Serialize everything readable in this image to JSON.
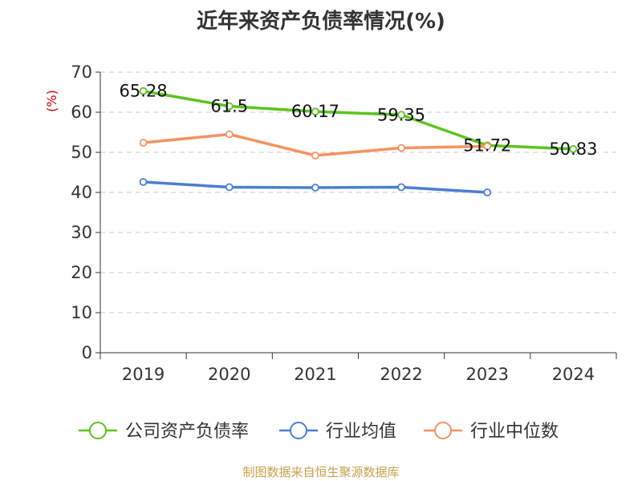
{
  "title": "近年来资产负债率情况(%)",
  "source": "制图数据来自恒生聚源数据库",
  "chart_data": {
    "type": "line",
    "title": "近年来资产负债率情况(%)",
    "ylabel": "(%)",
    "ylim": [
      0,
      70
    ],
    "yticks": [
      0,
      10,
      20,
      30,
      40,
      50,
      60,
      70
    ],
    "categories": [
      "2019",
      "2020",
      "2021",
      "2022",
      "2023",
      "2024"
    ],
    "grid": true,
    "legend_position": "bottom",
    "series": [
      {
        "name": "公司资产负债率",
        "color": "#5cc41f",
        "values": [
          65.28,
          61.5,
          60.17,
          59.35,
          51.72,
          50.83
        ],
        "labels": [
          "65.28",
          "61.5",
          "60.17",
          "59.35",
          "51.72",
          "50.83"
        ]
      },
      {
        "name": "行业均值",
        "color": "#4a7fd4",
        "values": [
          42.6,
          41.3,
          41.2,
          41.3,
          40.0,
          null
        ]
      },
      {
        "name": "行业中位数",
        "color": "#f59260",
        "values": [
          52.4,
          54.5,
          49.2,
          51.1,
          51.5,
          null
        ]
      }
    ]
  }
}
